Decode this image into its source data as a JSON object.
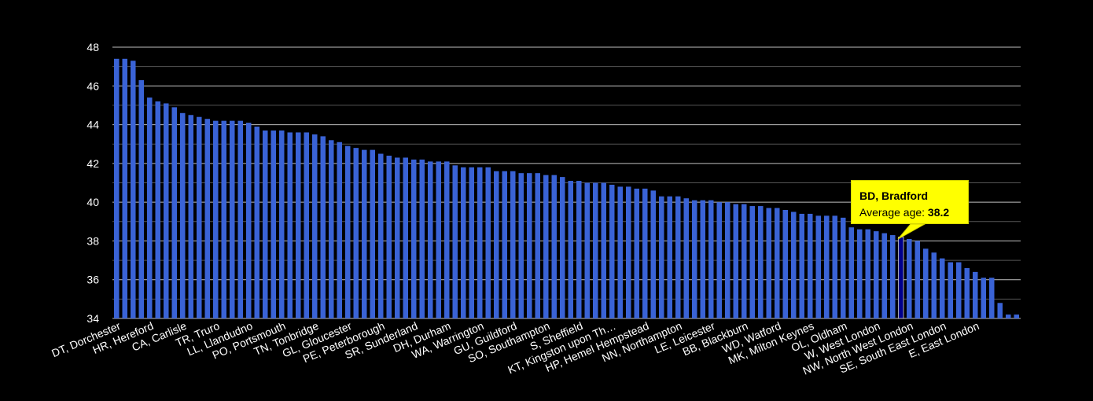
{
  "chart_data": {
    "type": "bar",
    "title": "",
    "xlabel": "",
    "ylabel": "",
    "ylim": [
      34,
      48
    ],
    "yticks": [
      34,
      36,
      38,
      40,
      42,
      44,
      46,
      48
    ],
    "grid": true,
    "colors": {
      "bar": "#3a63d6",
      "highlight": "#00008b",
      "background": "#000000",
      "grid": "#ffffff",
      "tooltip": "#ffff00"
    },
    "values": [
      47.4,
      47.4,
      47.3,
      46.3,
      45.4,
      45.2,
      45.1,
      44.9,
      44.6,
      44.5,
      44.4,
      44.3,
      44.2,
      44.2,
      44.2,
      44.2,
      44.1,
      43.9,
      43.7,
      43.7,
      43.7,
      43.6,
      43.6,
      43.6,
      43.5,
      43.4,
      43.2,
      43.1,
      42.9,
      42.8,
      42.7,
      42.7,
      42.5,
      42.4,
      42.3,
      42.3,
      42.2,
      42.2,
      42.1,
      42.1,
      42.1,
      41.9,
      41.8,
      41.8,
      41.8,
      41.8,
      41.6,
      41.6,
      41.6,
      41.5,
      41.5,
      41.5,
      41.4,
      41.4,
      41.3,
      41.1,
      41.1,
      41.0,
      41.0,
      41.0,
      40.9,
      40.8,
      40.8,
      40.7,
      40.7,
      40.6,
      40.3,
      40.3,
      40.3,
      40.2,
      40.1,
      40.1,
      40.1,
      40.0,
      40.0,
      39.9,
      39.9,
      39.8,
      39.8,
      39.7,
      39.7,
      39.6,
      39.5,
      39.4,
      39.4,
      39.3,
      39.3,
      39.3,
      39.2,
      38.7,
      38.6,
      38.6,
      38.5,
      38.4,
      38.3,
      38.2,
      38.1,
      38.0,
      37.6,
      37.4,
      37.1,
      36.9,
      36.9,
      36.6,
      36.4,
      36.1,
      36.1,
      34.8,
      34.2,
      34.2
    ],
    "highlight_index": 95,
    "tick_labels": [
      {
        "index": 0,
        "label": "DT, Dorchester"
      },
      {
        "index": 4,
        "label": "HR, Hereford"
      },
      {
        "index": 8,
        "label": "CA, Carlisle"
      },
      {
        "index": 12,
        "label": "TR, Truro"
      },
      {
        "index": 16,
        "label": "LL, Llandudno"
      },
      {
        "index": 20,
        "label": "PO, Portsmouth"
      },
      {
        "index": 24,
        "label": "TN, Tonbridge"
      },
      {
        "index": 28,
        "label": "GL, Gloucester"
      },
      {
        "index": 32,
        "label": "PE, Peterborough"
      },
      {
        "index": 36,
        "label": "SR, Sunderland"
      },
      {
        "index": 40,
        "label": "DH, Durham"
      },
      {
        "index": 44,
        "label": "WA, Warrington"
      },
      {
        "index": 48,
        "label": "GU, Guildford"
      },
      {
        "index": 52,
        "label": "SO, Southampton"
      },
      {
        "index": 56,
        "label": "S, Sheffield"
      },
      {
        "index": 60,
        "label": "KT, Kingston upon Th…"
      },
      {
        "index": 64,
        "label": "HP, Hemel Hempstead"
      },
      {
        "index": 68,
        "label": "NN, Northampton"
      },
      {
        "index": 72,
        "label": "LE, Leicester"
      },
      {
        "index": 76,
        "label": "BB, Blackburn"
      },
      {
        "index": 80,
        "label": "WD, Watford"
      },
      {
        "index": 84,
        "label": "MK, Milton Keynes"
      },
      {
        "index": 88,
        "label": "OL, Oldham"
      },
      {
        "index": 92,
        "label": "W, West London"
      },
      {
        "index": 96,
        "label": "NW, North West London"
      },
      {
        "index": 100,
        "label": "SE, South East London"
      },
      {
        "index": 104,
        "label": "E, East London"
      }
    ],
    "tooltip": {
      "title": "BD, Bradford",
      "label": "Average age:",
      "value": "38.2"
    }
  }
}
